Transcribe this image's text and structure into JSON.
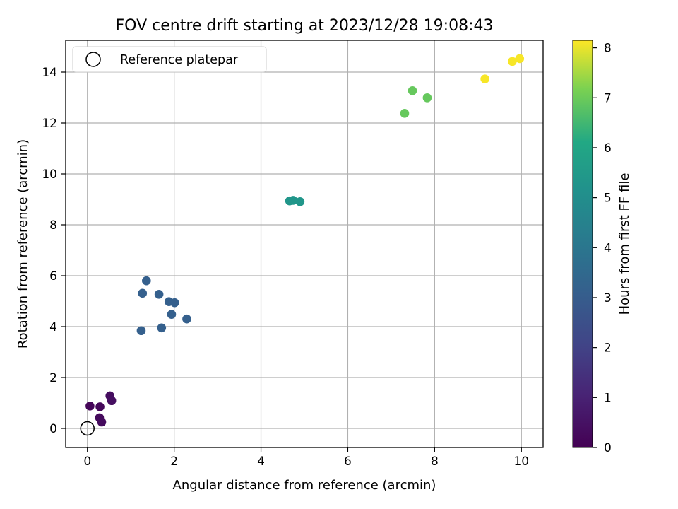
{
  "chart_data": {
    "type": "scatter",
    "title": "FOV centre drift starting at 2023/12/28 19:08:43",
    "xlabel": "Angular distance from reference (arcmin)",
    "ylabel": "Rotation from reference (arcmin)",
    "xlim": [
      -0.5,
      10.5
    ],
    "ylim": [
      -0.75,
      15.25
    ],
    "xticks": [
      0,
      2,
      4,
      6,
      8,
      10
    ],
    "yticks": [
      0,
      2,
      4,
      6,
      8,
      10,
      12,
      14
    ],
    "grid": true,
    "legend": {
      "placement": "top-left",
      "entries": [
        "Reference platepar"
      ]
    },
    "reference_point": {
      "x": 0,
      "y": 0
    },
    "colorbar": {
      "label": "Hours from first FF file",
      "range": [
        0,
        8.15
      ],
      "ticks": [
        0,
        1,
        2,
        3,
        4,
        5,
        6,
        7,
        8
      ],
      "colormap": "viridis"
    },
    "points": [
      {
        "x": 0.06,
        "y": 0.88,
        "c": 0.15
      },
      {
        "x": 0.29,
        "y": 0.85,
        "c": 0.2
      },
      {
        "x": 0.28,
        "y": 0.42,
        "c": 0.25
      },
      {
        "x": 0.33,
        "y": 0.25,
        "c": 0.3
      },
      {
        "x": 0.52,
        "y": 1.28,
        "c": 0.35
      },
      {
        "x": 0.56,
        "y": 1.09,
        "c": 0.4
      },
      {
        "x": 1.24,
        "y": 3.84,
        "c": 3.1
      },
      {
        "x": 1.27,
        "y": 5.31,
        "c": 3.1
      },
      {
        "x": 1.36,
        "y": 5.8,
        "c": 3.1
      },
      {
        "x": 1.65,
        "y": 5.27,
        "c": 3.1
      },
      {
        "x": 1.71,
        "y": 3.95,
        "c": 3.1
      },
      {
        "x": 1.88,
        "y": 4.98,
        "c": 3.1
      },
      {
        "x": 1.94,
        "y": 4.48,
        "c": 3.1
      },
      {
        "x": 2.01,
        "y": 4.94,
        "c": 3.1
      },
      {
        "x": 2.29,
        "y": 4.3,
        "c": 3.1
      },
      {
        "x": 4.66,
        "y": 8.94,
        "c": 5.3
      },
      {
        "x": 4.74,
        "y": 8.96,
        "c": 5.3
      },
      {
        "x": 4.9,
        "y": 8.91,
        "c": 5.3
      },
      {
        "x": 7.31,
        "y": 12.38,
        "c": 6.9
      },
      {
        "x": 7.49,
        "y": 13.27,
        "c": 6.9
      },
      {
        "x": 7.83,
        "y": 12.99,
        "c": 6.9
      },
      {
        "x": 9.16,
        "y": 13.73,
        "c": 8.1
      },
      {
        "x": 9.79,
        "y": 14.42,
        "c": 8.1
      },
      {
        "x": 9.96,
        "y": 14.53,
        "c": 8.1
      }
    ]
  }
}
